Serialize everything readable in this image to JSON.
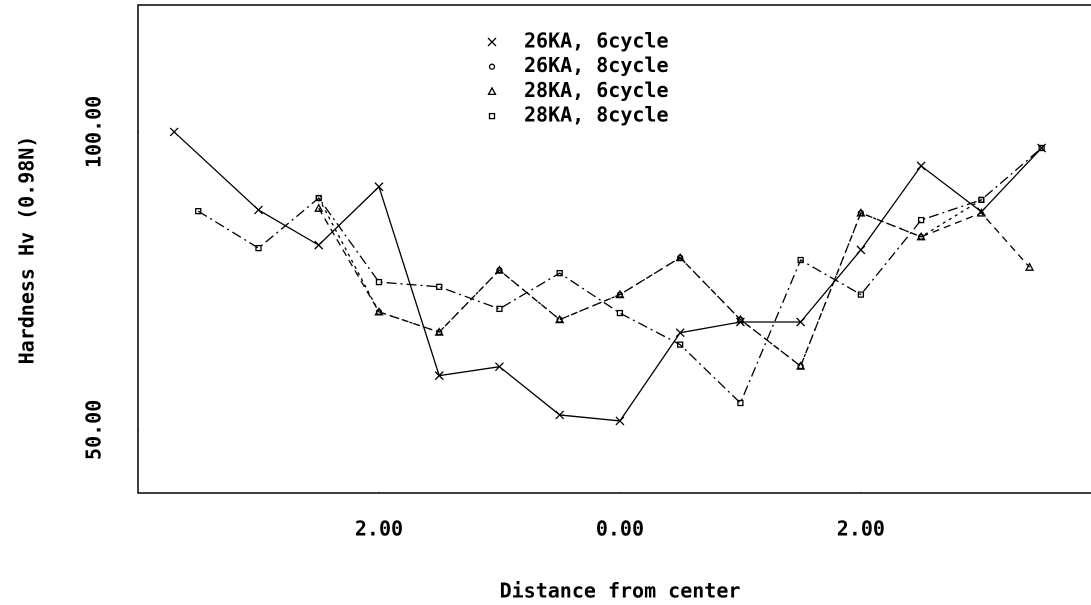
{
  "chart_data": {
    "type": "line",
    "xlabel": "Distance from center",
    "ylabel": "Hardness Hv (0.98N)",
    "xlim": [
      -4.0,
      3.91
    ],
    "ylim": [
      39.4,
      121.3
    ],
    "xticks": [
      {
        "value": -2,
        "label": "2.00"
      },
      {
        "value": 0,
        "label": "0.00"
      },
      {
        "value": 2,
        "label": "2.00"
      }
    ],
    "yticks": [
      {
        "value": 50,
        "label": "50.00"
      },
      {
        "value": 100,
        "label": "100.00"
      }
    ],
    "legend": "top",
    "series": [
      {
        "name": "26KA, 6cycle",
        "color": "#000000",
        "marker": "x",
        "dash": "none",
        "x": [
          -3.7,
          -3.0,
          -2.5,
          -2.0,
          -1.5,
          -1.0,
          -0.5,
          0,
          0.5,
          1.0,
          1.5,
          2.0,
          2.5,
          3.0,
          3.5
        ],
        "values": [
          100,
          86.9,
          81.0,
          90.8,
          59.1,
          60.6,
          52.5,
          51.5,
          66.3,
          68.1,
          68.1,
          80.2,
          94.3,
          86.6,
          97.3
        ]
      },
      {
        "name": "26KA, 8cycle",
        "color": "#000000",
        "marker": "circle",
        "dash": "3,4",
        "x": [
          -2.5,
          -2.0,
          -1.5,
          -1.0,
          -0.5,
          0,
          0.5,
          1.0,
          1.5,
          2.0,
          2.5,
          3.0
        ],
        "values": [
          88.9,
          69.8,
          66.4,
          76.8,
          68.5,
          72.7,
          78.9,
          68.5,
          60.7,
          86.4,
          82.4,
          88.6
        ]
      },
      {
        "name": "28KA, 6cycle",
        "color": "#000000",
        "marker": "triangle",
        "dash": "7,5",
        "x": [
          -2.5,
          -2.0,
          -1.5,
          -1.0,
          -0.5,
          0,
          0.5,
          1.0,
          1.5,
          2.0,
          2.5,
          3.0,
          3.4
        ],
        "values": [
          87.2,
          69.8,
          66.4,
          76.8,
          68.5,
          72.7,
          78.9,
          68.5,
          60.7,
          86.4,
          82.4,
          86.4,
          77.3
        ]
      },
      {
        "name": "28KA, 8cycle",
        "color": "#000000",
        "marker": "square",
        "dash": "10,4,2,4",
        "x": [
          -3.5,
          -3.0,
          -2.5,
          -2.0,
          -1.5,
          -1.0,
          -0.5,
          0,
          0.5,
          1.0,
          1.5,
          2.0,
          2.5,
          3.0,
          3.5
        ],
        "values": [
          86.7,
          80.5,
          88.9,
          74.8,
          74.0,
          70.3,
          76.3,
          69.6,
          64.3,
          54.5,
          78.5,
          72.7,
          85.2,
          88.6,
          97.3
        ]
      }
    ]
  }
}
